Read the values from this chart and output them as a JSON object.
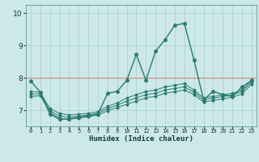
{
  "xlabel": "Humidex (Indice chaleur)",
  "xlim": [
    -0.5,
    23.5
  ],
  "ylim": [
    6.5,
    10.25
  ],
  "yticks": [
    7,
    8,
    9,
    10
  ],
  "xticks": [
    0,
    1,
    2,
    3,
    4,
    5,
    6,
    7,
    8,
    9,
    10,
    11,
    12,
    13,
    14,
    15,
    16,
    17,
    18,
    19,
    20,
    21,
    22,
    23
  ],
  "bg_color": "#cce8e8",
  "grid_color": "#aacccc",
  "line_color": "#2a7a72",
  "hline_color": "#cc8888",
  "hline_y": 8.0,
  "lines": [
    {
      "x": [
        0,
        1,
        2,
        3,
        4,
        5,
        6,
        7,
        8,
        9,
        10,
        11,
        12,
        13,
        14,
        15,
        16,
        17,
        18,
        19,
        20,
        21,
        22,
        23
      ],
      "y": [
        7.9,
        7.55,
        6.88,
        6.72,
        6.73,
        6.78,
        6.82,
        6.88,
        7.52,
        7.58,
        7.92,
        8.72,
        7.92,
        8.82,
        9.18,
        9.62,
        9.68,
        8.55,
        7.32,
        7.58,
        7.48,
        7.42,
        7.72,
        7.92
      ]
    },
    {
      "x": [
        0,
        1,
        2,
        3,
        4,
        5,
        6,
        7,
        8,
        9,
        10,
        11,
        12,
        13,
        14,
        15,
        16,
        17,
        18,
        19,
        20,
        21,
        22,
        23
      ],
      "y": [
        7.58,
        7.55,
        7.05,
        6.9,
        6.85,
        6.88,
        6.9,
        6.95,
        7.12,
        7.22,
        7.38,
        7.48,
        7.58,
        7.62,
        7.72,
        7.77,
        7.82,
        7.62,
        7.38,
        7.42,
        7.48,
        7.52,
        7.62,
        7.92
      ]
    },
    {
      "x": [
        0,
        1,
        2,
        3,
        4,
        5,
        6,
        7,
        8,
        9,
        10,
        11,
        12,
        13,
        14,
        15,
        16,
        17,
        18,
        19,
        20,
        21,
        22,
        23
      ],
      "y": [
        7.5,
        7.5,
        6.98,
        6.82,
        6.78,
        6.82,
        6.85,
        6.9,
        7.05,
        7.15,
        7.28,
        7.38,
        7.48,
        7.52,
        7.62,
        7.67,
        7.72,
        7.55,
        7.32,
        7.37,
        7.42,
        7.47,
        7.57,
        7.87
      ]
    },
    {
      "x": [
        0,
        1,
        2,
        3,
        4,
        5,
        6,
        7,
        8,
        9,
        10,
        11,
        12,
        13,
        14,
        15,
        16,
        17,
        18,
        19,
        20,
        21,
        22,
        23
      ],
      "y": [
        7.42,
        7.45,
        6.92,
        6.75,
        6.72,
        6.75,
        6.8,
        6.85,
        6.98,
        7.08,
        7.18,
        7.28,
        7.38,
        7.43,
        7.52,
        7.57,
        7.62,
        7.48,
        7.25,
        7.3,
        7.35,
        7.4,
        7.5,
        7.8
      ]
    }
  ]
}
